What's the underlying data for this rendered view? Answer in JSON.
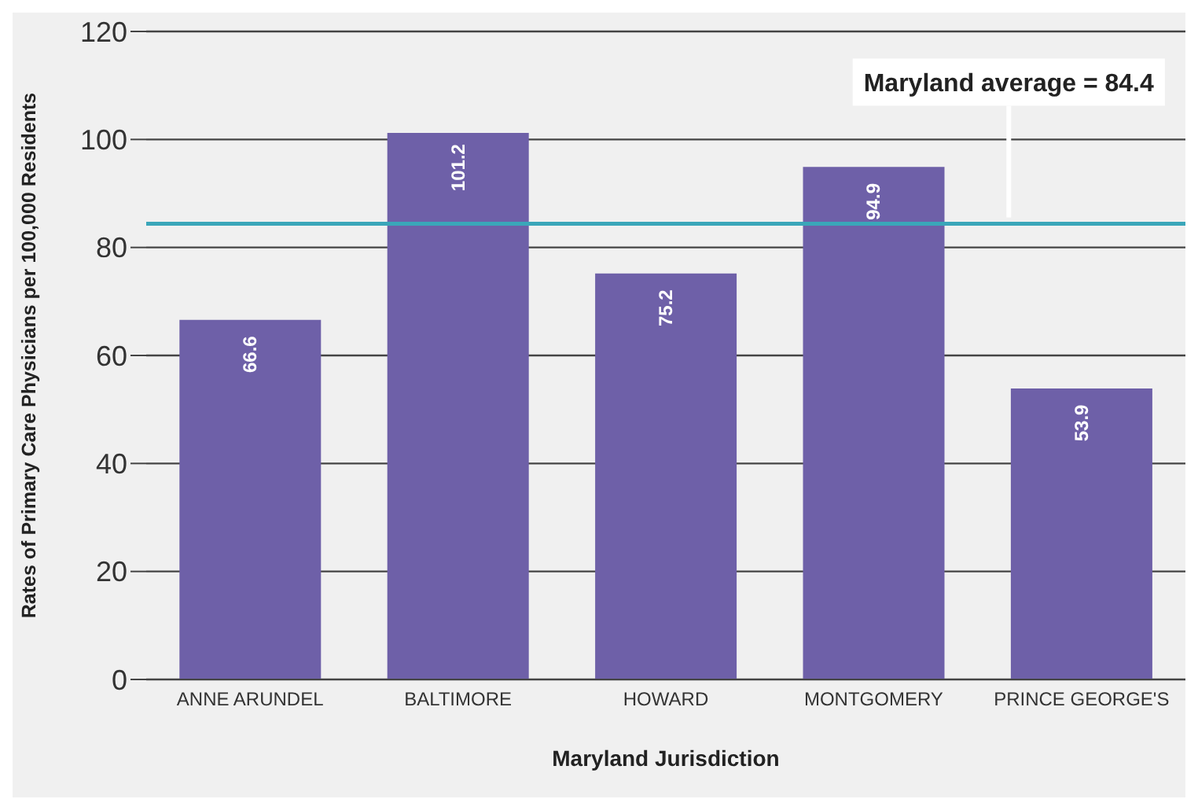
{
  "chart_data": {
    "type": "bar",
    "xlabel": "Maryland Jurisdiction",
    "ylabel": "Rates of Primary Care Physicians per 100,000 Residents",
    "categories": [
      "ANNE ARUNDEL",
      "BALTIMORE",
      "HOWARD",
      "MONTGOMERY",
      "PRINCE GEORGE'S"
    ],
    "values": [
      66.6,
      101.2,
      75.2,
      94.9,
      53.9
    ],
    "color": "#6e60a8",
    "ylim": [
      0,
      120
    ],
    "yticks": [
      0,
      20,
      40,
      60,
      80,
      100,
      120
    ],
    "grid": "y",
    "data_labels": true,
    "ref_lines": [
      {
        "axis": "y",
        "value": 84.4,
        "label": "Maryland average = 84.4",
        "color": "#3aa6b9"
      }
    ]
  }
}
